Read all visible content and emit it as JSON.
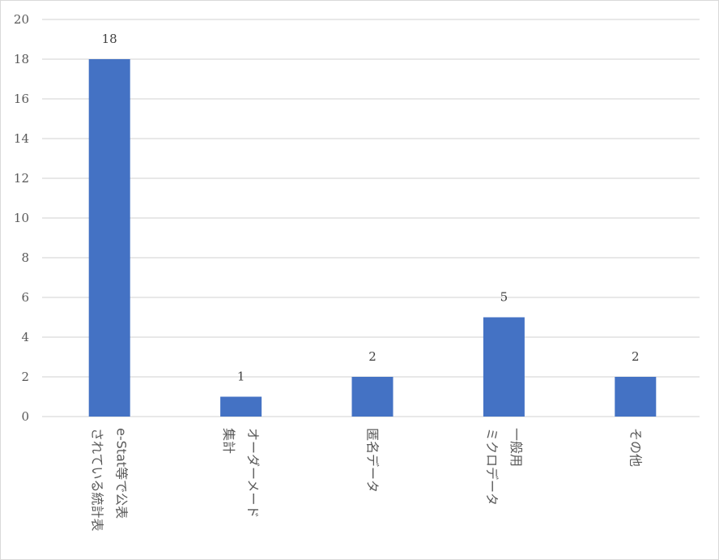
{
  "chart_data": {
    "type": "bar",
    "categories": [
      [
        "e-Stat等で公表",
        "されている統計表"
      ],
      [
        "オーダーメード",
        "集計"
      ],
      [
        "匿名データ"
      ],
      [
        "一般用",
        "ミクロデータ"
      ],
      [
        "その他"
      ]
    ],
    "values": [
      18,
      1,
      2,
      5,
      2
    ],
    "data_labels": [
      "18",
      "1",
      "2",
      "5",
      "2"
    ],
    "title": "",
    "xlabel": "",
    "ylabel": "",
    "ylim": [
      0,
      20
    ],
    "yticks": [
      0,
      2,
      4,
      6,
      8,
      10,
      12,
      14,
      16,
      18,
      20
    ],
    "grid": true,
    "legend": "none",
    "bar_color": "#4472c4",
    "grid_color": "#d9d9d9"
  }
}
